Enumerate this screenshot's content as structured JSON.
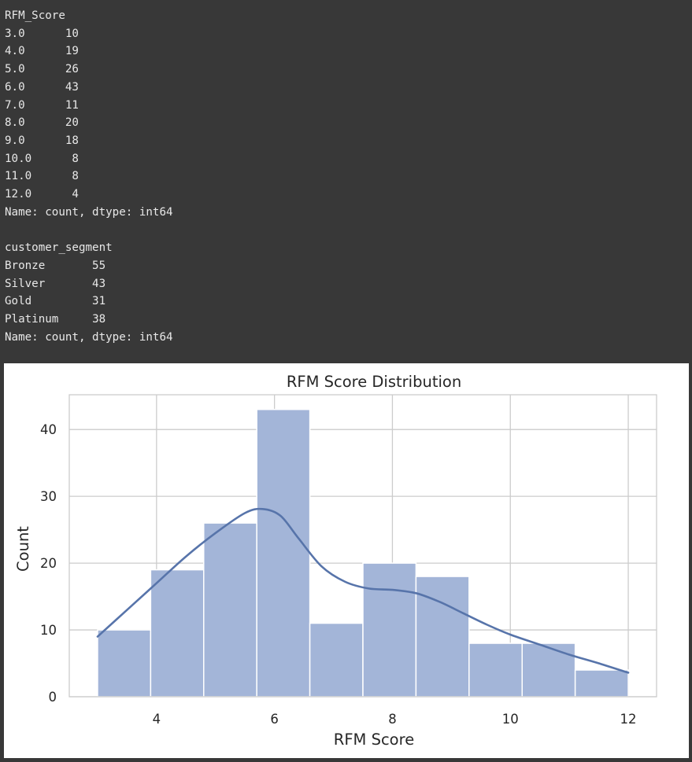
{
  "output": {
    "rfm_counts": {
      "header": "RFM_Score",
      "rows": [
        {
          "key": "3.0",
          "value": "10"
        },
        {
          "key": "4.0",
          "value": "19"
        },
        {
          "key": "5.0",
          "value": "26"
        },
        {
          "key": "6.0",
          "value": "43"
        },
        {
          "key": "7.0",
          "value": "11"
        },
        {
          "key": "8.0",
          "value": "20"
        },
        {
          "key": "9.0",
          "value": "18"
        },
        {
          "key": "10.0",
          "value": "8"
        },
        {
          "key": "11.0",
          "value": "8"
        },
        {
          "key": "12.0",
          "value": "4"
        }
      ],
      "footer": "Name: count, dtype: int64"
    },
    "segment_counts": {
      "header": "customer_segment",
      "rows": [
        {
          "key": "Bronze",
          "value": "55"
        },
        {
          "key": "Silver",
          "value": "43"
        },
        {
          "key": "Gold",
          "value": "31"
        },
        {
          "key": "Platinum",
          "value": "38"
        }
      ],
      "footer": "Name: count, dtype: int64"
    }
  },
  "chart_data": {
    "type": "bar",
    "title": "RFM Score Distribution",
    "xlabel": "RFM Score",
    "ylabel": "Count",
    "xlim": [
      2.52,
      12.48
    ],
    "ylim": [
      0,
      45.2
    ],
    "xticks": [
      4,
      6,
      8,
      10,
      12
    ],
    "yticks": [
      0,
      10,
      20,
      30,
      40
    ],
    "grid": true,
    "bins": [
      {
        "x0": 3.0,
        "x1": 3.9,
        "count": 10
      },
      {
        "x0": 3.9,
        "x1": 4.8,
        "count": 19
      },
      {
        "x0": 4.8,
        "x1": 5.7,
        "count": 26
      },
      {
        "x0": 5.7,
        "x1": 6.6,
        "count": 43
      },
      {
        "x0": 6.6,
        "x1": 7.5,
        "count": 11
      },
      {
        "x0": 7.5,
        "x1": 8.4,
        "count": 20
      },
      {
        "x0": 8.4,
        "x1": 9.3,
        "count": 18
      },
      {
        "x0": 9.3,
        "x1": 10.2,
        "count": 8
      },
      {
        "x0": 10.2,
        "x1": 11.1,
        "count": 8
      },
      {
        "x0": 11.1,
        "x1": 12.0,
        "count": 4
      }
    ],
    "kde": {
      "x": [
        3.0,
        3.5,
        4.0,
        4.5,
        5.0,
        5.5,
        5.8,
        6.1,
        6.4,
        6.8,
        7.2,
        7.6,
        8.0,
        8.4,
        8.8,
        9.2,
        9.6,
        10.0,
        10.5,
        11.0,
        11.5,
        12.0
      ],
      "y": [
        9,
        13,
        17,
        21,
        24.5,
        27.5,
        28.1,
        27.1,
        23.8,
        19.5,
        17.2,
        16.2,
        16.0,
        15.5,
        14.2,
        12.5,
        10.8,
        9.3,
        7.8,
        6.3,
        5.0,
        3.6
      ]
    },
    "colors": {
      "bar_fill": "#a3b5d8",
      "bar_edge": "#ffffff",
      "kde_line": "#5774aa",
      "grid": "#cccccc",
      "axes_edge": "#cccccc"
    }
  }
}
